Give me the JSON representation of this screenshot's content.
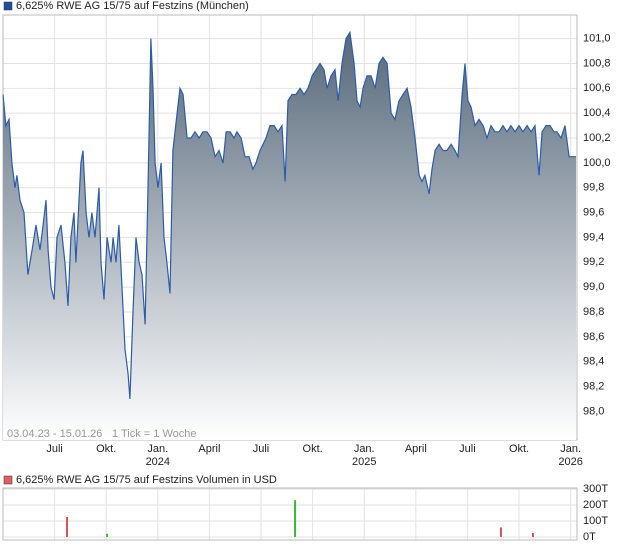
{
  "chart_data": [
    {
      "type": "area",
      "title": "6,625% RWE AG 15/75 auf Festzins (München)",
      "date_range": "03.04.23 - 15.01.26",
      "tick_note": "1 Tick = 1 Woche",
      "color": "#2a5caa",
      "marker_color": "#1f4e9c",
      "x": [
        0,
        0.17,
        0.35,
        0.52,
        0.7,
        0.81,
        0.99,
        1.22,
        1.45,
        1.69,
        1.92,
        2.15,
        2.33,
        2.5,
        2.62,
        2.79,
        2.97,
        3.14,
        3.37,
        3.6,
        3.78,
        3.95,
        4.13,
        4.24,
        4.42,
        4.53,
        4.65,
        4.83,
        5.0,
        5.17,
        5.35,
        5.58,
        5.7,
        5.87,
        6.05,
        6.28,
        6.4,
        6.57,
        6.74,
        6.92,
        7.09,
        7.27,
        7.38,
        7.56,
        7.73,
        7.91,
        8.08,
        8.26,
        8.43,
        8.6,
        8.72,
        8.84,
        9.01,
        9.19,
        9.36,
        9.53,
        9.71,
        9.88,
        10.12,
        10.29,
        10.47,
        10.7,
        10.93,
        11.16,
        11.4,
        11.63,
        11.86,
        12.09,
        12.33,
        12.56,
        12.79,
        12.97,
        13.2,
        13.43,
        13.6,
        13.84,
        14.07,
        14.3,
        14.53,
        14.71,
        14.94,
        15.12,
        15.29,
        15.52,
        15.76,
        15.99,
        16.22,
        16.4,
        16.57,
        16.8,
        17.03,
        17.27,
        17.5,
        17.73,
        17.97,
        18.2,
        18.43,
        18.66,
        18.84,
        19.07,
        19.3,
        19.48,
        19.71,
        19.94,
        20.17,
        20.41,
        20.58,
        20.76,
        20.93,
        21.16,
        21.4,
        21.63,
        21.86,
        22.09,
        22.33,
        22.56,
        22.79,
        23.02,
        23.26,
        23.49,
        23.72,
        23.95,
        24.19,
        24.36,
        24.53,
        24.77,
        24.94,
        25.12,
        25.35,
        25.58,
        25.81,
        26.05,
        26.28,
        26.45,
        26.69,
        26.86,
        27.03,
        27.21,
        27.44,
        27.67,
        27.91,
        28.14,
        28.37,
        28.6,
        28.84,
        29.07,
        29.3,
        29.53,
        29.77,
        30.0,
        30.23,
        30.47,
        30.7,
        30.93,
        31.16,
        31.34,
        31.57,
        31.8,
        32.03,
        32.21,
        32.44,
        32.67,
        32.91,
        33.14,
        33.31
      ],
      "values": [
        100.55,
        100.3,
        100.35,
        100.0,
        99.8,
        99.9,
        99.7,
        99.6,
        99.1,
        99.3,
        99.5,
        99.3,
        99.5,
        99.7,
        99.3,
        99.0,
        98.9,
        99.4,
        99.5,
        99.2,
        98.85,
        99.4,
        99.6,
        99.2,
        99.7,
        100.0,
        100.1,
        99.6,
        99.4,
        99.6,
        99.4,
        99.8,
        99.2,
        98.9,
        99.4,
        99.2,
        99.4,
        99.2,
        99.5,
        99.0,
        98.5,
        98.3,
        98.1,
        98.8,
        99.4,
        99.2,
        99.1,
        98.7,
        99.8,
        101.0,
        100.6,
        100.0,
        99.8,
        100.0,
        99.4,
        99.2,
        98.95,
        100.1,
        100.4,
        100.6,
        100.55,
        100.2,
        100.2,
        100.25,
        100.2,
        100.25,
        100.25,
        100.2,
        100.05,
        100.1,
        100.0,
        100.25,
        100.25,
        100.2,
        100.25,
        100.2,
        100.05,
        100.05,
        99.95,
        100.0,
        100.1,
        100.15,
        100.2,
        100.3,
        100.3,
        100.25,
        100.3,
        99.85,
        100.5,
        100.55,
        100.55,
        100.6,
        100.55,
        100.6,
        100.7,
        100.75,
        100.8,
        100.75,
        100.6,
        100.7,
        100.75,
        100.5,
        100.8,
        101.0,
        101.05,
        100.8,
        100.5,
        100.45,
        100.6,
        100.7,
        100.7,
        100.6,
        100.8,
        100.85,
        100.8,
        100.4,
        100.35,
        100.5,
        100.55,
        100.6,
        100.45,
        100.2,
        99.9,
        99.85,
        99.9,
        99.75,
        99.95,
        100.1,
        100.15,
        100.1,
        100.1,
        100.15,
        100.1,
        100.05,
        100.55,
        100.8,
        100.5,
        100.45,
        100.3,
        100.35,
        100.3,
        100.2,
        100.3,
        100.25,
        100.25,
        100.3,
        100.25,
        100.3,
        100.25,
        100.3,
        100.25,
        100.3,
        100.25,
        100.3,
        99.9,
        100.25,
        100.3,
        100.3,
        100.25,
        100.25,
        100.2,
        100.3,
        100.05,
        100.05,
        100.05
      ],
      "xlim": [
        0,
        33.37
      ],
      "xticks": [
        {
          "value": 3,
          "label": "Juli"
        },
        {
          "value": 6,
          "label": "Okt."
        },
        {
          "value": 9,
          "label": "Jan. 2024"
        },
        {
          "value": 12,
          "label": "April"
        },
        {
          "value": 15,
          "label": "Juli"
        },
        {
          "value": 18,
          "label": "Okt."
        },
        {
          "value": 21,
          "label": "Jan. 2025"
        },
        {
          "value": 24,
          "label": "April"
        },
        {
          "value": 27,
          "label": "Juli"
        },
        {
          "value": 30,
          "label": "Okt."
        },
        {
          "value": 33,
          "label": "Jan. 2026"
        }
      ],
      "ylim": [
        97.77,
        101.19
      ],
      "yticks": [
        {
          "value": 98.0,
          "label": "98,0"
        },
        {
          "value": 98.2,
          "label": "98,2"
        },
        {
          "value": 98.4,
          "label": "98,4"
        },
        {
          "value": 98.6,
          "label": "98,6"
        },
        {
          "value": 98.8,
          "label": "98,8"
        },
        {
          "value": 99.0,
          "label": "99,0"
        },
        {
          "value": 99.2,
          "label": "99,2"
        },
        {
          "value": 99.4,
          "label": "99,4"
        },
        {
          "value": 99.6,
          "label": "99,6"
        },
        {
          "value": 99.8,
          "label": "99,8"
        },
        {
          "value": 100.0,
          "label": "100,0"
        },
        {
          "value": 100.2,
          "label": "100,2"
        },
        {
          "value": 100.4,
          "label": "100,4"
        },
        {
          "value": 100.6,
          "label": "100,6"
        },
        {
          "value": 100.8,
          "label": "100,8"
        },
        {
          "value": 101.0,
          "label": "101,0"
        }
      ],
      "grid": true
    },
    {
      "type": "bar",
      "title": "6,625% RWE AG 15/75 auf Festzins Volumen in USD",
      "marker_color": "#e06060",
      "x": [
        3.72,
        6.05,
        16.98,
        28.95,
        30.81
      ],
      "values": [
        125,
        20,
        230,
        60,
        25
      ],
      "colors": [
        "#e05050",
        "#33bb33",
        "#33bb33",
        "#e05050",
        "#e05050"
      ],
      "xlim": [
        0,
        33.37
      ],
      "ylim": [
        0,
        300
      ],
      "yticks": [
        {
          "value": 0,
          "label": "0T"
        },
        {
          "value": 100,
          "label": "100T"
        },
        {
          "value": 200,
          "label": "200T"
        },
        {
          "value": 300,
          "label": "300T"
        }
      ],
      "grid": true
    }
  ]
}
